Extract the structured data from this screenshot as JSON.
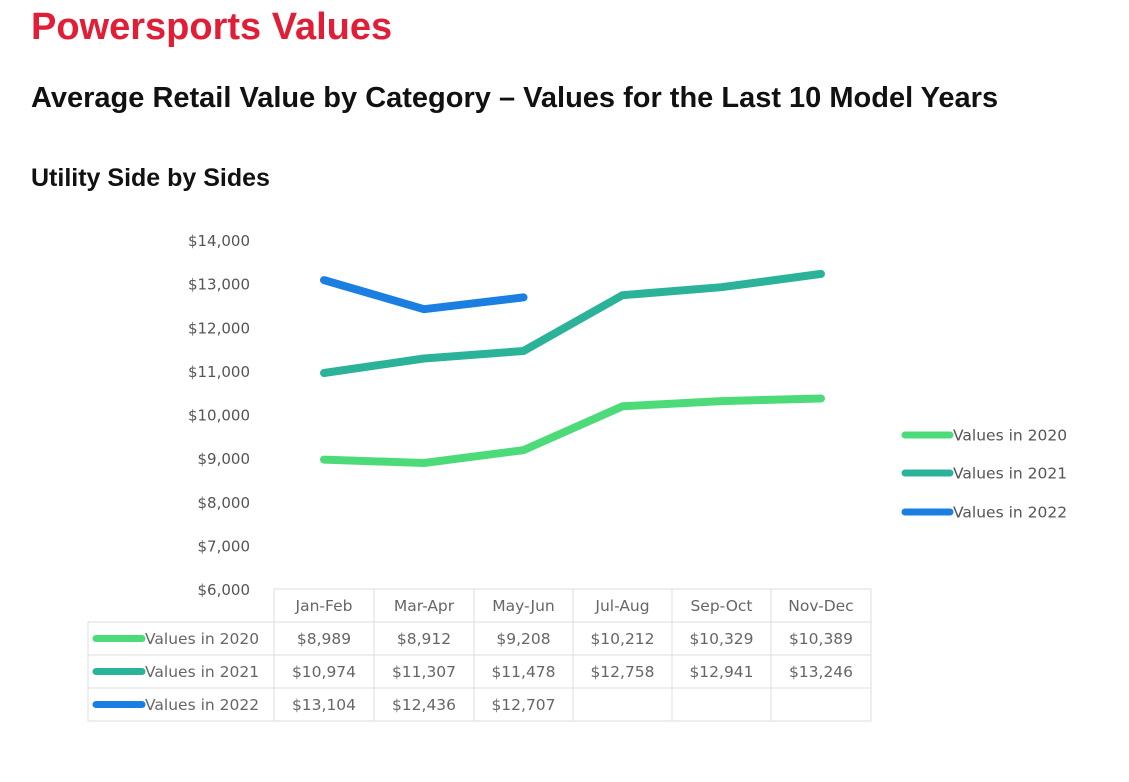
{
  "header": {
    "title": "Powersports Values",
    "subtitle": "Average Retail Value by Category – Values for the Last 10 Model Years",
    "section": "Utility Side by Sides"
  },
  "chart_data": {
    "type": "line",
    "categories": [
      "Jan-Feb",
      "Mar-Apr",
      "May-Jun",
      "Jul-Aug",
      "Sep-Oct",
      "Nov-Dec"
    ],
    "series": [
      {
        "name": "Values in 2020",
        "color": "#4ddb7a",
        "values": [
          8989,
          8912,
          9208,
          10212,
          10329,
          10389
        ],
        "labels": [
          "$8,989",
          "$8,912",
          "$9,208",
          "$10,212",
          "$10,329",
          "$10,389"
        ]
      },
      {
        "name": "Values in 2021",
        "color": "#2bb39a",
        "values": [
          10974,
          11307,
          11478,
          12758,
          12941,
          13246
        ],
        "labels": [
          "$10,974",
          "$11,307",
          "$11,478",
          "$12,758",
          "$12,941",
          "$13,246"
        ]
      },
      {
        "name": "Values in 2022",
        "color": "#1a7fe0",
        "values": [
          13104,
          12436,
          12707,
          null,
          null,
          null
        ],
        "labels": [
          "$13,104",
          "$12,436",
          "$12,707",
          "",
          "",
          ""
        ]
      }
    ],
    "yticks": [
      "$14,000",
      "$13,000",
      "$12,000",
      "$11,000",
      "$10,000",
      "$9,000",
      "$8,000",
      "$7,000",
      "$6,000"
    ],
    "ylim": [
      6000,
      14000
    ],
    "grid": false,
    "legend": "right",
    "data_table": true
  }
}
